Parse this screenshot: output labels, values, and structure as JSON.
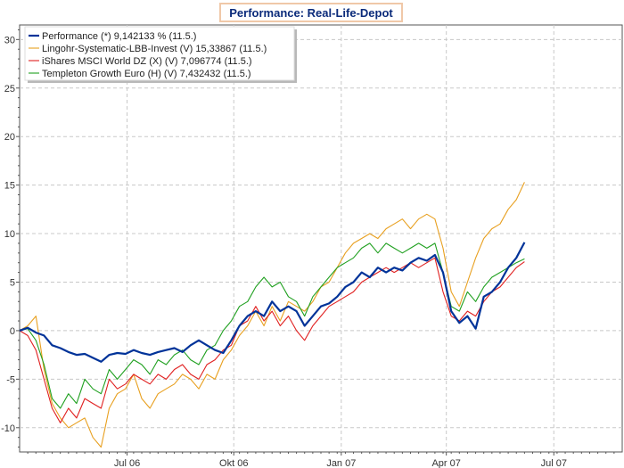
{
  "chart_data": {
    "type": "line",
    "title": "Performance: Real-Life-Depot",
    "xlabel": "",
    "ylabel": "",
    "ylim": [
      -12.5,
      31.5
    ],
    "y_ticks": [
      -10,
      -5,
      0,
      5,
      10,
      15,
      20,
      25,
      30
    ],
    "x_domain": [
      0,
      74
    ],
    "x_ticks": [
      {
        "label": "Jul 06",
        "pos": 13.2
      },
      {
        "label": "Okt 06",
        "pos": 26.3
      },
      {
        "label": "Jan 07",
        "pos": 39.5
      },
      {
        "label": "Apr 07",
        "pos": 52.4
      },
      {
        "label": "Jul 07",
        "pos": 65.6
      }
    ],
    "grid": true,
    "legend_position": "top-left",
    "series": [
      {
        "name": "Performance",
        "legend_label": "Performance (*) 9,142133 % (11.5.)",
        "color": "#003399",
        "width": 2.2,
        "x": [
          0,
          1,
          2,
          3,
          4,
          5,
          6,
          7,
          8,
          9,
          10,
          11,
          12,
          13,
          14,
          15,
          16,
          17,
          18,
          19,
          20,
          21,
          22,
          23,
          24,
          25,
          26,
          27,
          28,
          29,
          30,
          31,
          32,
          33,
          34,
          35,
          36,
          37,
          38,
          39,
          40,
          41,
          42,
          43,
          44,
          45,
          46,
          47,
          48,
          49,
          50,
          51,
          52,
          53,
          54,
          55,
          56,
          57,
          58,
          59,
          60,
          61,
          62
        ],
        "values": [
          0,
          0.3,
          -0.2,
          -0.5,
          -1.5,
          -1.8,
          -2.2,
          -2.5,
          -2.4,
          -2.8,
          -3.2,
          -2.5,
          -2.3,
          -2.4,
          -2.0,
          -2.3,
          -2.5,
          -2.2,
          -2.0,
          -1.8,
          -2.2,
          -1.5,
          -1.0,
          -1.5,
          -2.0,
          -2.3,
          -1.0,
          0.5,
          1.5,
          2.0,
          1.5,
          3.0,
          2.0,
          2.5,
          2.0,
          0.5,
          1.5,
          2.5,
          2.8,
          3.5,
          4.5,
          5.0,
          6.0,
          5.5,
          6.5,
          6.0,
          6.5,
          6.2,
          7.0,
          7.5,
          7.2,
          7.8,
          6.0,
          2.0,
          0.8,
          1.5,
          0.2,
          3.5,
          4.0,
          5.0,
          6.5,
          7.5,
          9.1
        ]
      },
      {
        "name": "Lingohr-Systematic-LBB-Invest",
        "legend_label": "Lingohr-Systematic-LBB-Invest (V) 15,33867 (11.5.)",
        "color": "#e8a020",
        "width": 1.1,
        "x": [
          0,
          1,
          2,
          3,
          4,
          5,
          6,
          7,
          8,
          9,
          10,
          11,
          12,
          13,
          14,
          15,
          16,
          17,
          18,
          19,
          20,
          21,
          22,
          23,
          24,
          25,
          26,
          27,
          28,
          29,
          30,
          31,
          32,
          33,
          34,
          35,
          36,
          37,
          38,
          39,
          40,
          41,
          42,
          43,
          44,
          45,
          46,
          47,
          48,
          49,
          50,
          51,
          52,
          53,
          54,
          55,
          56,
          57,
          58,
          59,
          60,
          61,
          62
        ],
        "values": [
          0,
          0.5,
          1.5,
          -4.0,
          -7.5,
          -9.0,
          -10.0,
          -9.5,
          -9.0,
          -11.0,
          -12.0,
          -8.0,
          -6.5,
          -6.0,
          -4.5,
          -7.0,
          -8.0,
          -6.5,
          -6.0,
          -5.5,
          -4.5,
          -5.0,
          -6.0,
          -4.5,
          -5.0,
          -3.0,
          -2.0,
          -0.5,
          0.5,
          2.0,
          0.5,
          2.5,
          1.0,
          3.0,
          2.5,
          2.0,
          3.0,
          4.5,
          5.0,
          6.5,
          8.0,
          9.0,
          9.5,
          10.0,
          9.5,
          10.5,
          11.0,
          11.5,
          10.5,
          11.5,
          12.0,
          11.5,
          8.5,
          4.0,
          2.5,
          5.0,
          7.5,
          9.5,
          10.5,
          11.0,
          12.5,
          13.5,
          15.3
        ]
      },
      {
        "name": "iShares MSCI World DZ",
        "legend_label": "iShares MSCI World DZ (X) (V) 7,096774 (11.5.)",
        "color": "#e02020",
        "width": 1.1,
        "x": [
          0,
          1,
          2,
          3,
          4,
          5,
          6,
          7,
          8,
          9,
          10,
          11,
          12,
          13,
          14,
          15,
          16,
          17,
          18,
          19,
          20,
          21,
          22,
          23,
          24,
          25,
          26,
          27,
          28,
          29,
          30,
          31,
          32,
          33,
          34,
          35,
          36,
          37,
          38,
          39,
          40,
          41,
          42,
          43,
          44,
          45,
          46,
          47,
          48,
          49,
          50,
          51,
          52,
          53,
          54,
          55,
          56,
          57,
          58,
          59,
          60,
          61,
          62
        ],
        "values": [
          0,
          -0.5,
          -2.0,
          -5.0,
          -8.0,
          -9.5,
          -8.0,
          -9.0,
          -7.0,
          -7.5,
          -8.0,
          -5.0,
          -6.0,
          -5.5,
          -4.5,
          -5.0,
          -5.5,
          -4.5,
          -5.0,
          -4.0,
          -3.5,
          -4.5,
          -5.0,
          -3.5,
          -3.0,
          -2.0,
          -1.5,
          0.5,
          1.0,
          2.5,
          1.0,
          2.0,
          0.5,
          1.5,
          0.0,
          -1.0,
          0.5,
          1.5,
          2.5,
          3.0,
          3.5,
          4.0,
          5.0,
          5.5,
          6.0,
          6.5,
          6.0,
          6.5,
          7.0,
          6.5,
          7.0,
          7.5,
          4.0,
          1.5,
          1.0,
          2.0,
          1.5,
          3.0,
          4.0,
          4.5,
          5.5,
          6.5,
          7.1
        ]
      },
      {
        "name": "Templeton Growth Euro",
        "legend_label": "Templeton Growth Euro (H) (V) 7,432432 (11.5.)",
        "color": "#20a020",
        "width": 1.1,
        "x": [
          0,
          1,
          2,
          3,
          4,
          5,
          6,
          7,
          8,
          9,
          10,
          11,
          12,
          13,
          14,
          15,
          16,
          17,
          18,
          19,
          20,
          21,
          22,
          23,
          24,
          25,
          26,
          27,
          28,
          29,
          30,
          31,
          32,
          33,
          34,
          35,
          36,
          37,
          38,
          39,
          40,
          41,
          42,
          43,
          44,
          45,
          46,
          47,
          48,
          49,
          50,
          51,
          52,
          53,
          54,
          55,
          56,
          57,
          58,
          59,
          60,
          61,
          62
        ],
        "values": [
          0,
          0.2,
          -1.0,
          -3.5,
          -7.0,
          -8.0,
          -6.5,
          -7.5,
          -5.0,
          -6.0,
          -6.5,
          -4.0,
          -5.0,
          -4.0,
          -3.0,
          -3.5,
          -4.5,
          -3.0,
          -3.5,
          -2.5,
          -2.0,
          -3.0,
          -3.5,
          -2.0,
          -1.5,
          0.0,
          1.0,
          2.5,
          3.0,
          4.5,
          5.5,
          4.5,
          5.0,
          3.5,
          3.0,
          1.5,
          3.5,
          4.5,
          5.5,
          6.5,
          7.0,
          7.5,
          8.5,
          9.0,
          8.0,
          9.0,
          8.5,
          8.0,
          8.5,
          9.0,
          8.5,
          9.0,
          6.0,
          2.5,
          2.0,
          4.0,
          3.0,
          4.5,
          5.5,
          6.0,
          6.5,
          7.0,
          7.4
        ]
      }
    ]
  }
}
